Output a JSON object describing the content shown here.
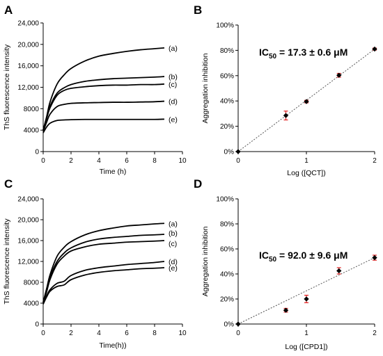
{
  "chart_data": [
    {
      "panel": "A",
      "type": "line",
      "xlabel": "Time (h)",
      "ylabel": "ThS fluorescence intensity",
      "xlim": [
        0,
        10
      ],
      "ylim": [
        0,
        24000
      ],
      "x_ticks": [
        "0",
        "2",
        "4",
        "6",
        "8",
        "10"
      ],
      "y_ticks": [
        "0",
        "4000",
        "8000",
        "12,000",
        "16,000",
        "20,000",
        "24,000"
      ],
      "series": [
        {
          "name": "(a)",
          "x": [
            0,
            0.25,
            0.5,
            1,
            1.5,
            2,
            3,
            4,
            5,
            6,
            7,
            8,
            8.7
          ],
          "y": [
            4000,
            6500,
            9300,
            12600,
            14300,
            15500,
            16900,
            17800,
            18300,
            18700,
            19000,
            19200,
            19350
          ]
        },
        {
          "name": "(b)",
          "x": [
            0,
            0.25,
            0.5,
            1,
            1.5,
            2,
            3,
            4,
            5,
            6,
            7,
            8,
            8.7
          ],
          "y": [
            4000,
            6300,
            8500,
            10900,
            11900,
            12500,
            13100,
            13400,
            13600,
            13700,
            13800,
            13900,
            14000
          ]
        },
        {
          "name": "(c)",
          "x": [
            0,
            0.25,
            0.5,
            1,
            1.5,
            2,
            3,
            4,
            5,
            6,
            7,
            8,
            8.7
          ],
          "y": [
            4000,
            6200,
            8200,
            10500,
            11400,
            11800,
            12100,
            12300,
            12400,
            12400,
            12500,
            12500,
            12600
          ]
        },
        {
          "name": "(d)",
          "x": [
            0,
            0.25,
            0.5,
            1,
            1.5,
            2,
            3,
            4,
            5,
            6,
            7,
            8,
            8.7
          ],
          "y": [
            3800,
            5500,
            7000,
            8400,
            8800,
            9000,
            9100,
            9150,
            9200,
            9200,
            9250,
            9300,
            9400
          ]
        },
        {
          "name": "(e)",
          "x": [
            0,
            0.25,
            0.5,
            1,
            1.5,
            2,
            3,
            4,
            5,
            6,
            7,
            8,
            8.7
          ],
          "y": [
            3500,
            4600,
            5300,
            5800,
            5900,
            5950,
            6000,
            6000,
            6000,
            6000,
            6000,
            6000,
            6050
          ]
        }
      ]
    },
    {
      "panel": "B",
      "type": "scatter",
      "xlabel": "Log ([QCT])",
      "ylabel": "Aggregation inhibition",
      "xlim": [
        0,
        2
      ],
      "ylim": [
        0,
        100
      ],
      "x_ticks": [
        "0",
        "1",
        "2"
      ],
      "y_ticks": [
        "0%",
        "20%",
        "40%",
        "60%",
        "80%",
        "100%"
      ],
      "annotation_prefix": "IC",
      "annotation_sub": "50",
      "annotation_value": " = 17.3 ± 0.6 μM",
      "points": [
        {
          "x": 0,
          "y": 0,
          "err": 0
        },
        {
          "x": 0.699,
          "y": 28.5,
          "err": 3.5
        },
        {
          "x": 1,
          "y": 39.5,
          "err": 1
        },
        {
          "x": 1.477,
          "y": 60.3,
          "err": 1.5
        },
        {
          "x": 2,
          "y": 81,
          "err": 0.8
        }
      ],
      "trendline": {
        "x": [
          0,
          2
        ],
        "y": [
          0,
          81
        ]
      }
    },
    {
      "panel": "C",
      "type": "line",
      "xlabel": "Time(h))",
      "ylabel": "ThS fluorescence intensity",
      "xlim": [
        0,
        10
      ],
      "ylim": [
        0,
        24000
      ],
      "x_ticks": [
        "0",
        "2",
        "4",
        "6",
        "8",
        "10"
      ],
      "y_ticks": [
        "0",
        "4000",
        "8000",
        "12,000",
        "16,000",
        "20,000",
        "24,000"
      ],
      "series": [
        {
          "name": "(a)",
          "x": [
            0,
            0.25,
            0.5,
            1,
            1.5,
            2,
            3,
            4,
            5,
            6,
            7,
            8,
            8.7
          ],
          "y": [
            4200,
            6800,
            9500,
            13000,
            14700,
            15800,
            17100,
            17900,
            18400,
            18800,
            19000,
            19200,
            19300
          ]
        },
        {
          "name": "(b)",
          "x": [
            0,
            0.25,
            0.5,
            1,
            1.5,
            2,
            3,
            4,
            5,
            6,
            7,
            8,
            8.7
          ],
          "y": [
            4100,
            6500,
            9000,
            12000,
            13600,
            14600,
            15700,
            16300,
            16600,
            16800,
            17000,
            17100,
            17200
          ]
        },
        {
          "name": "(c)",
          "x": [
            0,
            0.25,
            0.5,
            1,
            1.5,
            2,
            3,
            4,
            5,
            6,
            7,
            8,
            8.7
          ],
          "y": [
            4000,
            6200,
            8600,
            11500,
            13000,
            14000,
            14800,
            15300,
            15500,
            15700,
            15800,
            15900,
            16000
          ]
        },
        {
          "name": "(d)",
          "x": [
            0,
            0.25,
            0.5,
            1,
            1.5,
            2,
            3,
            4,
            5,
            6,
            7,
            8,
            8.7
          ],
          "y": [
            3900,
            5400,
            6600,
            7800,
            8200,
            9300,
            10300,
            10800,
            11100,
            11400,
            11600,
            11800,
            12000
          ]
        },
        {
          "name": "(e)",
          "x": [
            0,
            0.25,
            0.5,
            1,
            1.5,
            2,
            3,
            4,
            5,
            6,
            7,
            8,
            8.7
          ],
          "y": [
            3800,
            5200,
            6300,
            7200,
            7500,
            8500,
            9400,
            9900,
            10200,
            10400,
            10600,
            10700,
            10800
          ]
        }
      ]
    },
    {
      "panel": "D",
      "type": "scatter",
      "xlabel": "Log ([CPD1])",
      "ylabel": "Aggregation inhibition",
      "xlim": [
        0,
        2
      ],
      "ylim": [
        0,
        100
      ],
      "x_ticks": [
        "0",
        "1",
        "2"
      ],
      "y_ticks": [
        "0%",
        "20%",
        "40%",
        "60%",
        "80%",
        "100%"
      ],
      "annotation_prefix": "IC",
      "annotation_sub": "50",
      "annotation_value": " = 92.0 ± 9.6 μM",
      "points": [
        {
          "x": 0,
          "y": 0,
          "err": 0
        },
        {
          "x": 0.699,
          "y": 11,
          "err": 1.5
        },
        {
          "x": 1,
          "y": 20,
          "err": 3
        },
        {
          "x": 1.477,
          "y": 42.5,
          "err": 2.5
        },
        {
          "x": 2,
          "y": 53,
          "err": 2
        }
      ],
      "trendline": {
        "x": [
          0,
          2
        ],
        "y": [
          0,
          53
        ]
      }
    }
  ]
}
